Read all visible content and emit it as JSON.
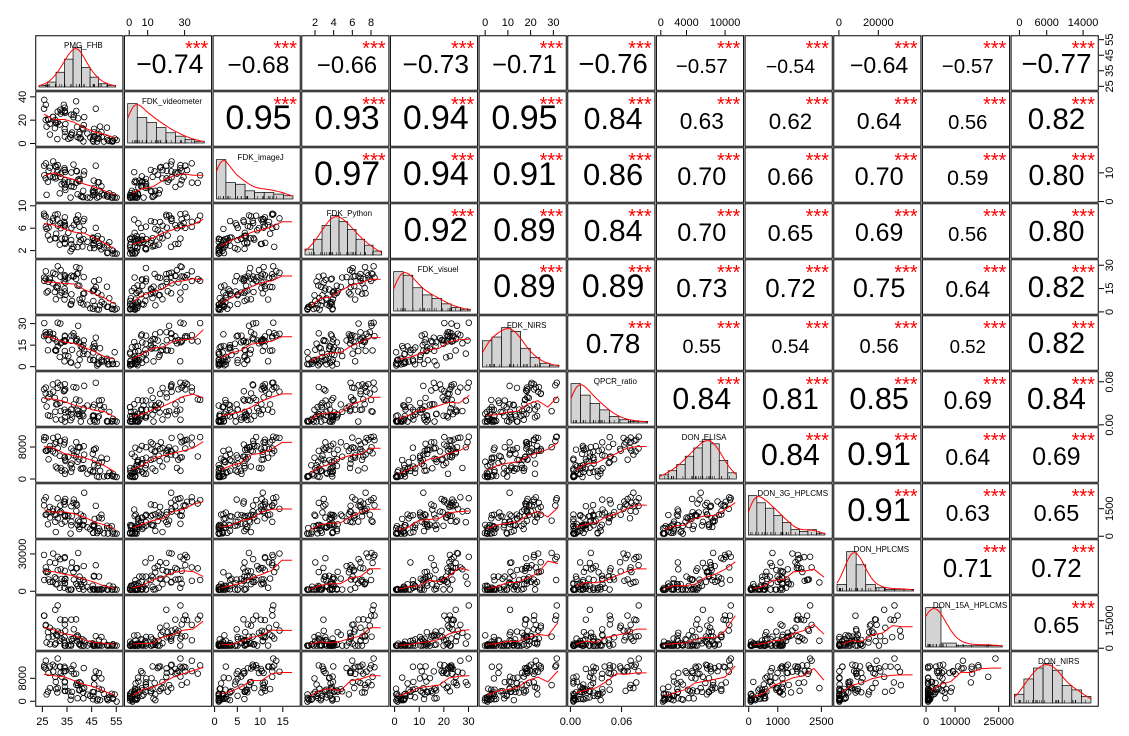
{
  "chart_data": {
    "type": "scatter-matrix",
    "variables": [
      "PMG_FHB",
      "FDK_videometer",
      "FDK_imageJ",
      "FDK_Python",
      "FDK_visuel",
      "FDK_NIRS",
      "QPCR_ratio",
      "DON_ELISA",
      "DON_3G_HPLCMS",
      "DON_HPLCMS",
      "DON_15A_HPLCMS",
      "DON_NIRS"
    ],
    "correlations": [
      [
        null,
        -0.74,
        -0.68,
        -0.66,
        -0.73,
        -0.71,
        -0.76,
        -0.57,
        -0.54,
        -0.64,
        -0.57,
        -0.77
      ],
      [
        null,
        null,
        0.95,
        0.93,
        0.94,
        0.95,
        0.84,
        0.63,
        0.62,
        0.64,
        0.56,
        0.82
      ],
      [
        null,
        null,
        null,
        0.97,
        0.94,
        0.91,
        0.86,
        0.7,
        0.66,
        0.7,
        0.59,
        0.8
      ],
      [
        null,
        null,
        null,
        null,
        0.92,
        0.89,
        0.84,
        0.7,
        0.65,
        0.69,
        0.56,
        0.8
      ],
      [
        null,
        null,
        null,
        null,
        null,
        0.89,
        0.89,
        0.73,
        0.72,
        0.75,
        0.64,
        0.82
      ],
      [
        null,
        null,
        null,
        null,
        null,
        null,
        0.78,
        0.55,
        0.54,
        0.56,
        0.52,
        0.82
      ],
      [
        null,
        null,
        null,
        null,
        null,
        null,
        null,
        0.84,
        0.81,
        0.85,
        0.69,
        0.84
      ],
      [
        null,
        null,
        null,
        null,
        null,
        null,
        null,
        null,
        0.84,
        0.91,
        0.64,
        0.69
      ],
      [
        null,
        null,
        null,
        null,
        null,
        null,
        null,
        null,
        null,
        0.91,
        0.63,
        0.65
      ],
      [
        null,
        null,
        null,
        null,
        null,
        null,
        null,
        null,
        null,
        null,
        0.71,
        0.72
      ],
      [
        null,
        null,
        null,
        null,
        null,
        null,
        null,
        null,
        null,
        null,
        null,
        0.65
      ],
      [
        null,
        null,
        null,
        null,
        null,
        null,
        null,
        null,
        null,
        null,
        null,
        null
      ]
    ],
    "significance": "***",
    "axis_ticks": {
      "top": [
        {
          "col": 1,
          "labels": [
            "0",
            "10",
            "30"
          ],
          "values": [
            0,
            10,
            30
          ],
          "range": [
            -3,
            45
          ]
        },
        {
          "col": 3,
          "labels": [
            "2",
            "4",
            "6",
            "8"
          ],
          "values": [
            2,
            4,
            6,
            8
          ],
          "range": [
            0.5,
            10
          ]
        },
        {
          "col": 5,
          "labels": [
            "0",
            "10",
            "20",
            "30"
          ],
          "values": [
            0,
            10,
            20,
            30
          ],
          "range": [
            -3,
            36
          ]
        },
        {
          "col": 7,
          "labels": [
            "0",
            "4000",
            "10000"
          ],
          "values": [
            0,
            4000,
            10000
          ],
          "range": [
            -800,
            13000
          ]
        },
        {
          "col": 9,
          "labels": [
            "0",
            "20000"
          ],
          "values": [
            0,
            20000
          ],
          "range": [
            -3000,
            42000
          ]
        },
        {
          "col": 11,
          "labels": [
            "0",
            "6000",
            "14000"
          ],
          "values": [
            0,
            6000,
            14000
          ],
          "range": [
            -2000,
            17500
          ]
        }
      ],
      "bottom": [
        {
          "col": 0,
          "labels": [
            "25",
            "35",
            "45",
            "55"
          ],
          "values": [
            25,
            35,
            45,
            55
          ],
          "range": [
            22,
            58
          ]
        },
        {
          "col": 2,
          "labels": [
            "0",
            "5",
            "10",
            "15"
          ],
          "values": [
            0,
            5,
            10,
            15
          ],
          "range": [
            -0.5,
            19
          ]
        },
        {
          "col": 4,
          "labels": [
            "0",
            "10",
            "20",
            "30"
          ],
          "values": [
            0,
            10,
            20,
            30
          ],
          "range": [
            -2,
            34
          ]
        },
        {
          "col": 6,
          "labels": [
            "0.00",
            "0.06"
          ],
          "values": [
            0,
            0.06
          ],
          "range": [
            -0.004,
            0.1
          ]
        },
        {
          "col": 8,
          "labels": [
            "0",
            "1000",
            "2500"
          ],
          "values": [
            0,
            1000,
            2500
          ],
          "range": [
            -150,
            2900
          ]
        },
        {
          "col": 10,
          "labels": [
            "0",
            "10000",
            "25000"
          ],
          "values": [
            0,
            10000,
            25000
          ],
          "range": [
            -1500,
            29000
          ]
        }
      ],
      "left": [
        {
          "row": 1,
          "labels": [
            "0",
            "20",
            "40"
          ],
          "values": [
            0,
            20,
            40
          ],
          "range": [
            -3,
            45
          ]
        },
        {
          "row": 3,
          "labels": [
            "2",
            "6",
            "10"
          ],
          "values": [
            2,
            6,
            10
          ],
          "range": [
            0.5,
            10.5
          ]
        },
        {
          "row": 5,
          "labels": [
            "0",
            "15",
            "30"
          ],
          "values": [
            0,
            15,
            30
          ],
          "range": [
            -3,
            36
          ]
        },
        {
          "row": 7,
          "labels": [
            "0",
            "8000"
          ],
          "values": [
            0,
            8000
          ],
          "range": [
            -1000,
            13000
          ]
        },
        {
          "row": 9,
          "labels": [
            "0",
            "30000"
          ],
          "values": [
            0,
            30000
          ],
          "range": [
            -3000,
            42000
          ]
        },
        {
          "row": 11,
          "labels": [
            "0",
            "8000"
          ],
          "values": [
            0,
            8000
          ],
          "range": [
            -2000,
            17500
          ]
        }
      ],
      "right": [
        {
          "row": 0,
          "labels": [
            "25",
            "35",
            "45",
            "55"
          ],
          "values": [
            25,
            35,
            45,
            55
          ],
          "range": [
            22,
            58
          ]
        },
        {
          "row": 2,
          "labels": [
            "0",
            "10"
          ],
          "values": [
            0,
            10
          ],
          "range": [
            -0.5,
            19
          ]
        },
        {
          "row": 4,
          "labels": [
            "0",
            "15",
            "30"
          ],
          "values": [
            0,
            15,
            30
          ],
          "range": [
            -2,
            34
          ]
        },
        {
          "row": 6,
          "labels": [
            "0.00",
            "0.08"
          ],
          "values": [
            0,
            0.08
          ],
          "range": [
            -0.004,
            0.1
          ]
        },
        {
          "row": 8,
          "labels": [
            "0",
            "1500"
          ],
          "values": [
            0,
            1500
          ],
          "range": [
            -150,
            2900
          ]
        },
        {
          "row": 10,
          "labels": [
            "0",
            "15000"
          ],
          "values": [
            0,
            15000
          ],
          "range": [
            -1500,
            29000
          ]
        }
      ]
    },
    "histograms": [
      [
        1,
        3,
        9,
        17,
        24,
        12,
        6,
        2,
        1
      ],
      [
        23,
        15,
        12,
        9,
        6,
        4,
        2,
        1
      ],
      [
        24,
        10,
        9,
        5,
        4,
        4,
        3,
        2
      ],
      [
        3,
        8,
        15,
        20,
        17,
        13,
        8,
        5,
        2
      ],
      [
        22,
        20,
        13,
        9,
        7,
        4,
        2,
        1
      ],
      [
        14,
        16,
        21,
        19,
        10,
        5,
        2,
        1
      ],
      [
        24,
        17,
        12,
        8,
        4,
        2,
        1,
        1
      ],
      [
        2,
        4,
        7,
        11,
        15,
        19,
        17,
        9,
        3
      ],
      [
        22,
        18,
        15,
        11,
        7,
        3,
        2,
        3,
        1
      ],
      [
        4,
        24,
        16,
        4,
        2,
        1,
        1,
        1
      ],
      [
        30,
        3,
        1,
        1,
        1
      ],
      [
        4,
        11,
        16,
        18,
        15,
        8,
        6,
        3
      ]
    ],
    "grid": false,
    "smoother": "loess"
  },
  "colors": {
    "smoother": "#ff0000",
    "stars": "#ff0000",
    "histogram_fill": "#d3d3d3",
    "points": "#000000"
  }
}
